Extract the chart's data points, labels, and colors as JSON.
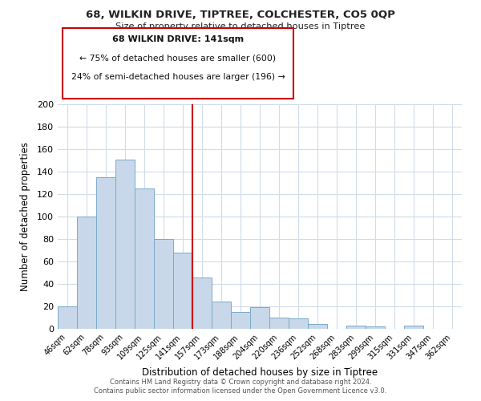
{
  "title": "68, WILKIN DRIVE, TIPTREE, COLCHESTER, CO5 0QP",
  "subtitle": "Size of property relative to detached houses in Tiptree",
  "xlabel": "Distribution of detached houses by size in Tiptree",
  "ylabel": "Number of detached properties",
  "bar_labels": [
    "46sqm",
    "62sqm",
    "78sqm",
    "93sqm",
    "109sqm",
    "125sqm",
    "141sqm",
    "157sqm",
    "173sqm",
    "188sqm",
    "204sqm",
    "220sqm",
    "236sqm",
    "252sqm",
    "268sqm",
    "283sqm",
    "299sqm",
    "315sqm",
    "331sqm",
    "347sqm",
    "362sqm"
  ],
  "bar_values": [
    20,
    100,
    135,
    151,
    125,
    80,
    68,
    46,
    24,
    15,
    19,
    10,
    9,
    4,
    0,
    3,
    2,
    0,
    3,
    0,
    0
  ],
  "bar_color": "#c8d8ea",
  "bar_edge_color": "#7aaac8",
  "highlight_index": 6,
  "highlight_line_color": "#cc0000",
  "ylim": [
    0,
    200
  ],
  "yticks": [
    0,
    20,
    40,
    60,
    80,
    100,
    120,
    140,
    160,
    180,
    200
  ],
  "annotation_title": "68 WILKIN DRIVE: 141sqm",
  "annotation_line1": "← 75% of detached houses are smaller (600)",
  "annotation_line2": "24% of semi-detached houses are larger (196) →",
  "annotation_box_color": "#ffffff",
  "annotation_box_edge": "#cc0000",
  "footer1": "Contains HM Land Registry data © Crown copyright and database right 2024.",
  "footer2": "Contains public sector information licensed under the Open Government Licence v3.0.",
  "background_color": "#ffffff",
  "grid_color": "#d0dce8"
}
